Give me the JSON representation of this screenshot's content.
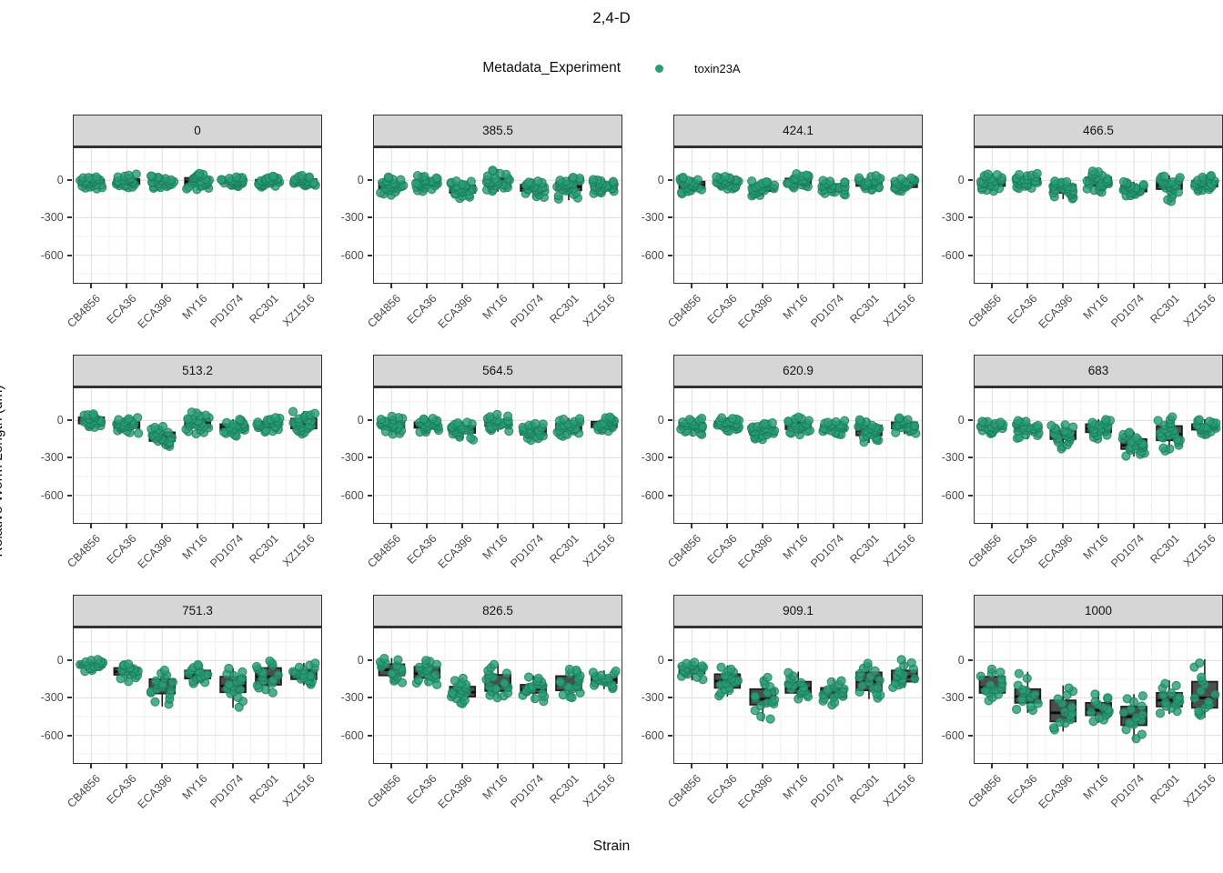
{
  "title": "2,4-D",
  "legend": {
    "title": "Metadata_Experiment",
    "entries": [
      {
        "label": "toxin23A",
        "color": "#2a9d74"
      }
    ]
  },
  "axes": {
    "x_title": "Strain",
    "y_title": "Relative Worm Length (um)",
    "y_tick_labels": [
      "0",
      "-300",
      "-600"
    ]
  },
  "style": {
    "point_fill": "#2a9d74",
    "point_stroke": "#17795a",
    "box_fill": "#4d4d4d",
    "box_stroke": "#1f1f1f",
    "median_color": "#0d0d0d",
    "strip_bg": "#d6d6d6",
    "grid_major": "#e3e3e3",
    "grid_minor": "#f1f1f1"
  },
  "chart_data": {
    "type": "boxplot_jitter_facets",
    "title": "2,4-D",
    "xlabel": "Strain",
    "ylabel": "Relative Worm Length (um)",
    "series_name": "toxin23A",
    "categories": [
      "CB4856",
      "ECA36",
      "ECA396",
      "MY16",
      "PD1074",
      "RC301",
      "XZ1516"
    ],
    "y_ticks": [
      0,
      -300,
      -600
    ],
    "y_minor_ticks": [
      150,
      -150,
      -450,
      -750
    ],
    "y_domain": [
      -820,
      255
    ],
    "jitter_seed": 42,
    "box_stats_order": [
      "low_whisker",
      "q1",
      "median",
      "q3",
      "high_whisker"
    ],
    "facets": [
      {
        "label": "0",
        "n_points": 24,
        "boxes": [
          [
            -70,
            -40,
            -15,
            5,
            30
          ],
          [
            -60,
            -30,
            -10,
            10,
            55
          ],
          [
            -65,
            -35,
            -15,
            5,
            40
          ],
          [
            -80,
            -35,
            -10,
            20,
            60
          ],
          [
            -50,
            -25,
            -10,
            5,
            30
          ],
          [
            -55,
            -30,
            -10,
            5,
            35
          ],
          [
            -45,
            -25,
            -10,
            10,
            40
          ]
        ]
      },
      {
        "label": "385.5",
        "n_points": 24,
        "boxes": [
          [
            -120,
            -70,
            -45,
            -15,
            30
          ],
          [
            -90,
            -45,
            -25,
            0,
            40
          ],
          [
            -150,
            -100,
            -70,
            -40,
            0
          ],
          [
            -90,
            -45,
            -20,
            15,
            90
          ],
          [
            -140,
            -85,
            -60,
            -35,
            -5
          ],
          [
            -160,
            -80,
            -50,
            -15,
            30
          ],
          [
            -110,
            -70,
            -50,
            -20,
            10
          ]
        ]
      },
      {
        "label": "424.1",
        "n_points": 24,
        "boxes": [
          [
            -110,
            -65,
            -40,
            -10,
            25
          ],
          [
            -75,
            -35,
            -15,
            5,
            35
          ],
          [
            -130,
            -85,
            -60,
            -35,
            -5
          ],
          [
            -60,
            -30,
            -10,
            15,
            55
          ],
          [
            -120,
            -80,
            -55,
            -30,
            0
          ],
          [
            -80,
            -45,
            -20,
            -5,
            40
          ],
          [
            -90,
            -55,
            -30,
            -10,
            20
          ]
        ]
      },
      {
        "label": "466.5",
        "n_points": 24,
        "boxes": [
          [
            -90,
            -45,
            -15,
            10,
            55
          ],
          [
            -70,
            -30,
            -10,
            15,
            60
          ],
          [
            -150,
            -100,
            -70,
            -35,
            -5
          ],
          [
            -100,
            -45,
            -10,
            25,
            80
          ],
          [
            -130,
            -90,
            -70,
            -45,
            -10
          ],
          [
            -180,
            -70,
            -40,
            -10,
            40
          ],
          [
            -90,
            -50,
            -30,
            -5,
            45
          ]
        ]
      },
      {
        "label": "513.2",
        "n_points": 22,
        "boxes": [
          [
            -60,
            -25,
            -5,
            25,
            55
          ],
          [
            -110,
            -60,
            -40,
            -15,
            25
          ],
          [
            -210,
            -165,
            -135,
            -95,
            -45
          ],
          [
            -110,
            -60,
            -20,
            15,
            70
          ],
          [
            -130,
            -80,
            -55,
            -30,
            10
          ],
          [
            -95,
            -55,
            -30,
            -10,
            25
          ],
          [
            -110,
            -65,
            -30,
            15,
            75
          ]
        ]
      },
      {
        "label": "564.5",
        "n_points": 22,
        "boxes": [
          [
            -120,
            -60,
            -35,
            -5,
            35
          ],
          [
            -100,
            -60,
            -40,
            -15,
            20
          ],
          [
            -160,
            -100,
            -75,
            -45,
            -10
          ],
          [
            -90,
            -45,
            -20,
            0,
            50
          ],
          [
            -160,
            -115,
            -95,
            -60,
            -20
          ],
          [
            -130,
            -85,
            -60,
            -25,
            20
          ],
          [
            -90,
            -55,
            -35,
            -10,
            30
          ]
        ]
      },
      {
        "label": "620.9",
        "n_points": 22,
        "boxes": [
          [
            -120,
            -70,
            -45,
            -20,
            20
          ],
          [
            -90,
            -50,
            -30,
            -10,
            25
          ],
          [
            -160,
            -115,
            -85,
            -55,
            -15
          ],
          [
            -120,
            -70,
            -45,
            -15,
            30
          ],
          [
            -120,
            -80,
            -55,
            -35,
            0
          ],
          [
            -180,
            -120,
            -80,
            -40,
            10
          ],
          [
            -110,
            -65,
            -40,
            -15,
            25
          ]
        ]
      },
      {
        "label": "683",
        "n_points": 22,
        "boxes": [
          [
            -110,
            -70,
            -50,
            -25,
            -5
          ],
          [
            -150,
            -90,
            -65,
            -40,
            0
          ],
          [
            -230,
            -150,
            -120,
            -85,
            -30
          ],
          [
            -150,
            -95,
            -65,
            -30,
            10
          ],
          [
            -290,
            -230,
            -200,
            -150,
            -90
          ],
          [
            -260,
            -160,
            -110,
            -45,
            30
          ],
          [
            -120,
            -75,
            -55,
            -30,
            10
          ]
        ]
      },
      {
        "label": "751.3",
        "n_points": 16,
        "boxes": [
          [
            -90,
            -55,
            -35,
            -15,
            10
          ],
          [
            -170,
            -115,
            -90,
            -60,
            -20
          ],
          [
            -370,
            -265,
            -225,
            -150,
            -70
          ],
          [
            -190,
            -145,
            -120,
            -80,
            -20
          ],
          [
            -380,
            -255,
            -205,
            -130,
            -60
          ],
          [
            -260,
            -195,
            -130,
            -60,
            0
          ],
          [
            -200,
            -150,
            -120,
            -75,
            -20
          ]
        ]
      },
      {
        "label": "826.5",
        "n_points": 18,
        "boxes": [
          [
            -180,
            -120,
            -75,
            -30,
            20
          ],
          [
            -200,
            -140,
            -105,
            -50,
            10
          ],
          [
            -360,
            -290,
            -255,
            -210,
            -140
          ],
          [
            -310,
            -245,
            -205,
            -115,
            -30
          ],
          [
            -330,
            -260,
            -230,
            -195,
            -120
          ],
          [
            -310,
            -240,
            -195,
            -125,
            -60
          ],
          [
            -230,
            -180,
            -155,
            -130,
            -80
          ]
        ]
      },
      {
        "label": "909.1",
        "n_points": 16,
        "boxes": [
          [
            -160,
            -105,
            -75,
            -45,
            -10
          ],
          [
            -290,
            -220,
            -165,
            -110,
            -40
          ],
          [
            -490,
            -355,
            -310,
            -230,
            -130
          ],
          [
            -310,
            -260,
            -225,
            -170,
            -90
          ],
          [
            -360,
            -300,
            -265,
            -220,
            -150
          ],
          [
            -310,
            -240,
            -170,
            -95,
            -20
          ],
          [
            -220,
            -170,
            -130,
            -80,
            10
          ]
        ]
      },
      {
        "label": "1000",
        "n_points": 14,
        "boxes": [
          [
            -330,
            -260,
            -215,
            -130,
            -60
          ],
          [
            -420,
            -340,
            -290,
            -230,
            -90
          ],
          [
            -570,
            -490,
            -420,
            -320,
            -200
          ],
          [
            -500,
            -440,
            -400,
            -340,
            -250
          ],
          [
            -640,
            -520,
            -450,
            -370,
            -270
          ],
          [
            -430,
            -370,
            -320,
            -260,
            -160
          ],
          [
            -460,
            -380,
            -300,
            -170,
            10
          ]
        ]
      }
    ]
  }
}
